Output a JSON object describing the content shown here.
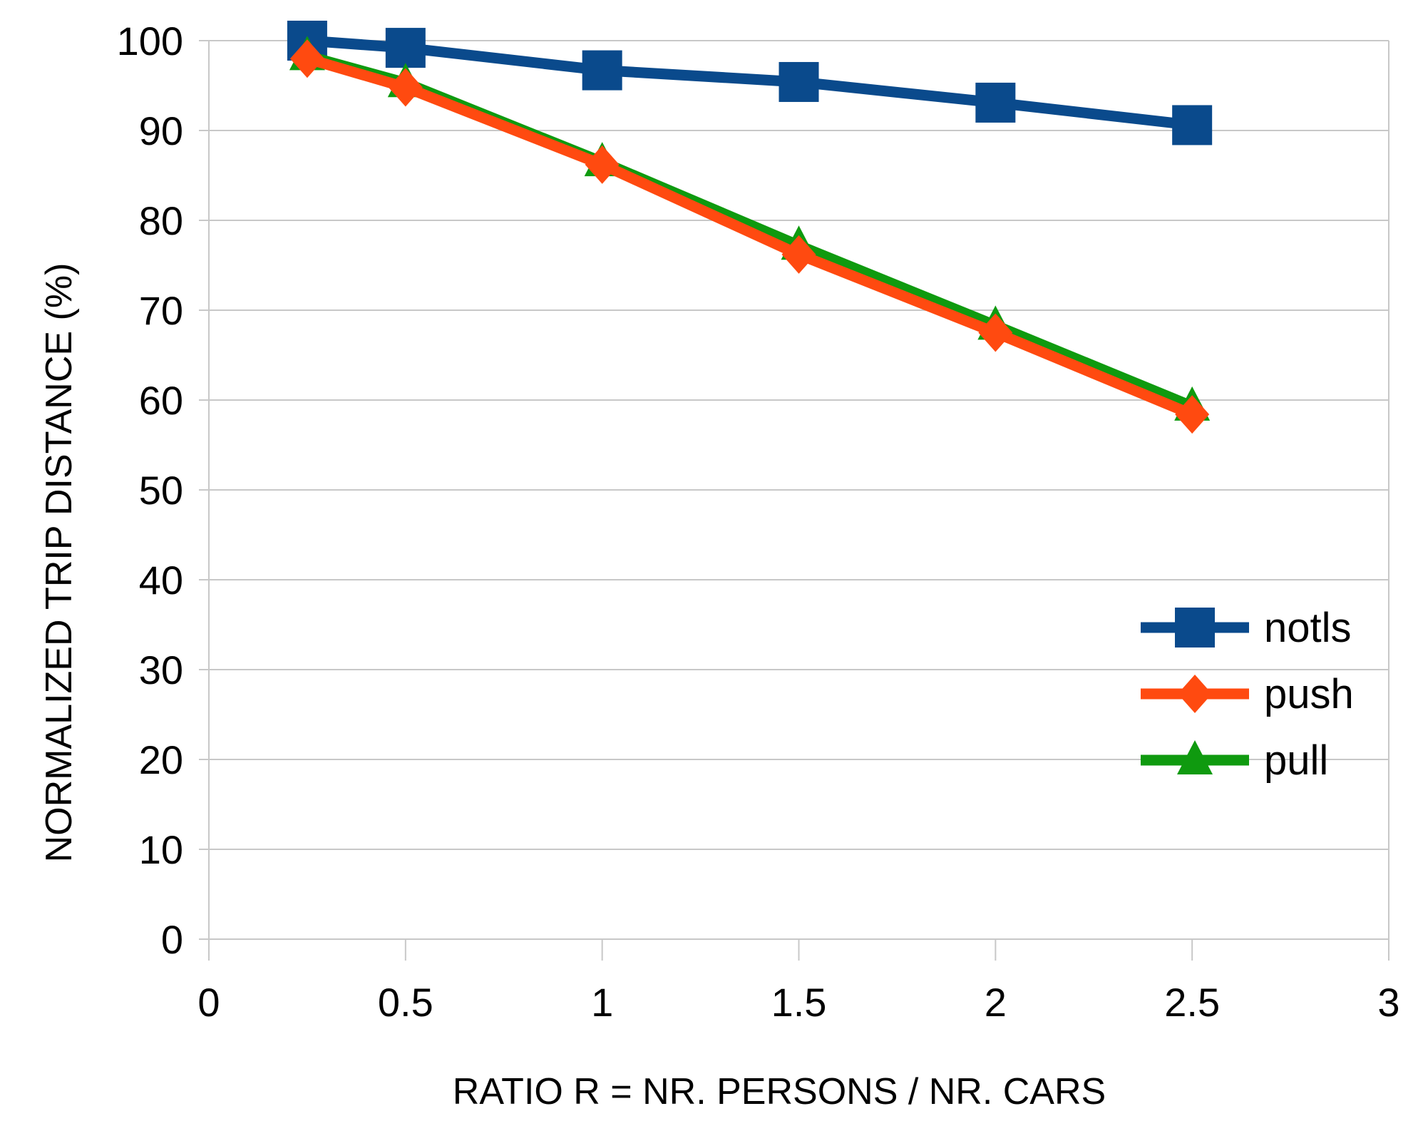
{
  "chart_data": {
    "type": "line",
    "title": "",
    "xlabel": "RATIO R = NR. PERSONS / NR. CARS",
    "ylabel": "NORMALIZED  TRIP  DISTANCE  (%)",
    "xlim": [
      0,
      3
    ],
    "ylim": [
      0,
      100
    ],
    "x_ticks": [
      "0",
      "0.5",
      "1",
      "1.5",
      "2",
      "2.5",
      "3"
    ],
    "y_ticks": [
      "0",
      "10",
      "20",
      "30",
      "40",
      "50",
      "60",
      "70",
      "80",
      "90",
      "100"
    ],
    "grid": "horizontal",
    "legend_position": "right",
    "x": [
      0.25,
      0.5,
      1,
      1.5,
      2,
      2.5
    ],
    "series": [
      {
        "name": "notls",
        "color": "#0a4a8c",
        "marker": "square",
        "values": [
          100,
          99.2,
          96.7,
          95.4,
          93.1,
          90.6
        ]
      },
      {
        "name": "pull",
        "color": "#0f9a0f",
        "marker": "triangle",
        "values": [
          98.3,
          95.3,
          86.5,
          77.2,
          68.3,
          59.3
        ]
      },
      {
        "name": "push",
        "color": "#ff4a10",
        "marker": "diamond",
        "values": [
          98.0,
          94.8,
          86.2,
          76.2,
          67.5,
          58.4
        ]
      }
    ],
    "legend_order": [
      "notls",
      "push",
      "pull"
    ]
  }
}
